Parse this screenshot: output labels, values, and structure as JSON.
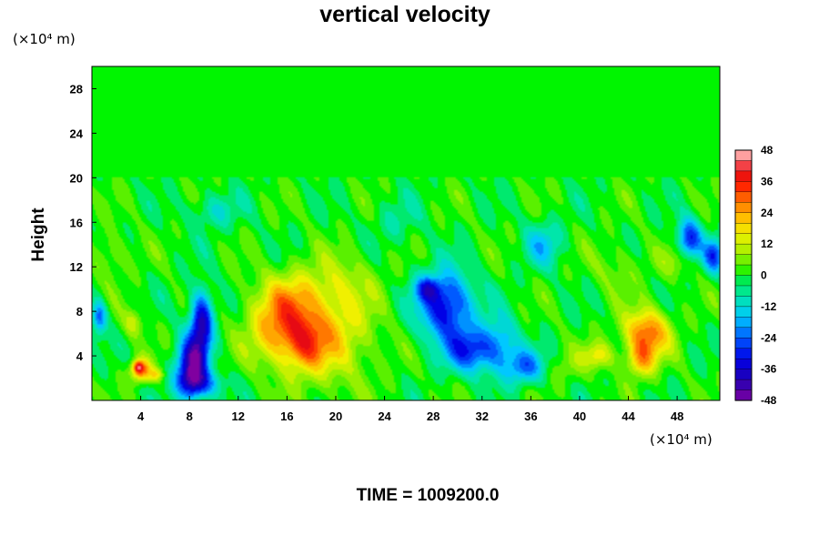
{
  "chart_data": {
    "type": "heatmap",
    "title": "vertical velocity",
    "ylabel": "Height",
    "xlabel": "",
    "x_unit": "(×10⁴ m)",
    "y_unit": "(×10⁴ m)",
    "footer": "TIME = 1009200.0",
    "xlim": [
      0,
      51.5
    ],
    "ylim": [
      0,
      30
    ],
    "x_ticks": [
      4,
      8,
      12,
      16,
      20,
      24,
      28,
      32,
      36,
      40,
      44,
      48
    ],
    "y_ticks": [
      4,
      8,
      12,
      16,
      20,
      24,
      28
    ],
    "x_tick_labels": [
      "4",
      "8",
      "12",
      "16",
      "20",
      "24",
      "28",
      "32",
      "36",
      "40",
      "44",
      "48"
    ],
    "y_tick_labels": [
      "4",
      "8",
      "12",
      "16",
      "20",
      "24",
      "28"
    ],
    "colorbar": {
      "min": -48,
      "max": 48,
      "step": 4,
      "tick_values": [
        48,
        36,
        24,
        12,
        0,
        -12,
        -24,
        -36,
        -48
      ],
      "tick_labels": [
        "48",
        "36",
        "24",
        "12",
        "0",
        "-12",
        "-24",
        "-36",
        "-48"
      ]
    },
    "features": [
      {
        "x": 15.5,
        "y": 6.5,
        "w": 24,
        "sx": 2.6,
        "sy": 3.2
      },
      {
        "x": 19.5,
        "y": 6.0,
        "w": 18,
        "sx": 3.5,
        "sy": 4.5
      },
      {
        "x": 16.5,
        "y": 9.5,
        "w": 10,
        "sx": 3.0,
        "sy": 2.5
      },
      {
        "x": 21.0,
        "y": 11.0,
        "w": 6,
        "sx": 2.5,
        "sy": 2.5
      },
      {
        "x": 17.5,
        "y": 5.0,
        "w": 14,
        "sx": 1.5,
        "sy": 2.2
      },
      {
        "x": 8.2,
        "y": 3.0,
        "w": -42,
        "sx": 1.2,
        "sy": 2.6
      },
      {
        "x": 9.0,
        "y": 7.0,
        "w": -38,
        "sx": 0.9,
        "sy": 2.8
      },
      {
        "x": 8.8,
        "y": 1.5,
        "w": -20,
        "sx": 1.8,
        "sy": 1.2
      },
      {
        "x": 4.0,
        "y": 2.7,
        "w": 30,
        "sx": 0.8,
        "sy": 1.0
      },
      {
        "x": 3.8,
        "y": 3.0,
        "w": 20,
        "sx": 0.4,
        "sy": 0.5
      },
      {
        "x": 3.4,
        "y": 7.0,
        "w": 12,
        "sx": 0.8,
        "sy": 1.2
      },
      {
        "x": 5.3,
        "y": 2.3,
        "w": 14,
        "sx": 0.6,
        "sy": 0.6
      },
      {
        "x": 0.6,
        "y": 7.5,
        "w": -24,
        "sx": 0.6,
        "sy": 1.5
      },
      {
        "x": 1.5,
        "y": 13.0,
        "w": 8,
        "sx": 1.5,
        "sy": 2.0
      },
      {
        "x": 29.0,
        "y": 8.5,
        "w": -34,
        "sx": 2.2,
        "sy": 3.0
      },
      {
        "x": 27.5,
        "y": 10.0,
        "w": -20,
        "sx": 1.0,
        "sy": 1.0
      },
      {
        "x": 31.0,
        "y": 4.5,
        "w": -26,
        "sx": 2.0,
        "sy": 2.0
      },
      {
        "x": 33.5,
        "y": 5.0,
        "w": -18,
        "sx": 1.5,
        "sy": 2.5
      },
      {
        "x": 35.5,
        "y": 3.0,
        "w": -22,
        "sx": 1.5,
        "sy": 1.5
      },
      {
        "x": 37.0,
        "y": 14.0,
        "w": -14,
        "sx": 1.5,
        "sy": 2.0
      },
      {
        "x": 45.5,
        "y": 6.0,
        "w": 30,
        "sx": 1.8,
        "sy": 2.2
      },
      {
        "x": 45.0,
        "y": 3.5,
        "w": 18,
        "sx": 1.2,
        "sy": 1.5
      },
      {
        "x": 41.5,
        "y": 4.0,
        "w": 16,
        "sx": 1.2,
        "sy": 1.2
      },
      {
        "x": 43.0,
        "y": 12.0,
        "w": 6,
        "sx": 2.0,
        "sy": 2.0
      },
      {
        "x": 48.0,
        "y": 12.5,
        "w": 8,
        "sx": 1.5,
        "sy": 1.5
      },
      {
        "x": 49.0,
        "y": 14.5,
        "w": -30,
        "sx": 1.0,
        "sy": 1.8
      },
      {
        "x": 51.0,
        "y": 13.0,
        "w": -26,
        "sx": 0.8,
        "sy": 1.5
      },
      {
        "x": 10.0,
        "y": 17.0,
        "w": -10,
        "sx": 2.0,
        "sy": 1.5
      },
      {
        "x": 25.0,
        "y": 16.0,
        "w": -6,
        "sx": 2.0,
        "sy": 2.0
      },
      {
        "x": 39.0,
        "y": 3.0,
        "w": 6,
        "sx": 1.2,
        "sy": 1.5
      }
    ]
  }
}
